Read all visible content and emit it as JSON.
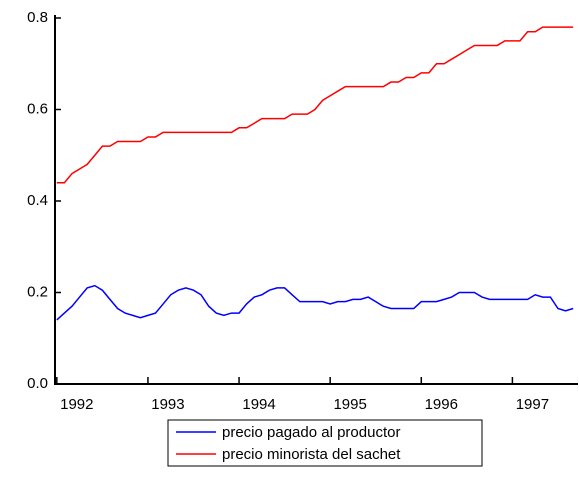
{
  "chart_data": {
    "type": "line",
    "x": [
      1992,
      1992.083,
      1992.167,
      1992.25,
      1992.333,
      1992.417,
      1992.5,
      1992.583,
      1992.667,
      1992.75,
      1992.833,
      1992.917,
      1993,
      1993.083,
      1993.167,
      1993.25,
      1993.333,
      1993.417,
      1993.5,
      1993.583,
      1993.667,
      1993.75,
      1993.833,
      1993.917,
      1994,
      1994.083,
      1994.167,
      1994.25,
      1994.333,
      1994.417,
      1994.5,
      1994.583,
      1994.667,
      1994.75,
      1994.833,
      1994.917,
      1995,
      1995.083,
      1995.167,
      1995.25,
      1995.333,
      1995.417,
      1995.5,
      1995.583,
      1995.667,
      1995.75,
      1995.833,
      1995.917,
      1996,
      1996.083,
      1996.167,
      1996.25,
      1996.333,
      1996.417,
      1996.5,
      1996.583,
      1996.667,
      1996.75,
      1996.833,
      1996.917,
      1997,
      1997.083,
      1997.167,
      1997.25,
      1997.333,
      1997.417,
      1997.5,
      1997.583,
      1997.667
    ],
    "series": [
      {
        "name": "precio pagado al productor",
        "color": "#0000ff",
        "values": [
          0.14,
          0.155,
          0.17,
          0.19,
          0.21,
          0.215,
          0.205,
          0.185,
          0.165,
          0.155,
          0.15,
          0.145,
          0.15,
          0.155,
          0.175,
          0.195,
          0.205,
          0.21,
          0.205,
          0.195,
          0.17,
          0.155,
          0.15,
          0.155,
          0.155,
          0.175,
          0.19,
          0.195,
          0.205,
          0.21,
          0.21,
          0.195,
          0.18,
          0.18,
          0.18,
          0.18,
          0.175,
          0.18,
          0.18,
          0.185,
          0.185,
          0.19,
          0.18,
          0.17,
          0.165,
          0.165,
          0.165,
          0.165,
          0.18,
          0.18,
          0.18,
          0.185,
          0.19,
          0.2,
          0.2,
          0.2,
          0.19,
          0.185,
          0.185,
          0.185,
          0.185,
          0.185,
          0.185,
          0.195,
          0.19,
          0.19,
          0.165,
          0.16,
          0.165
        ]
      },
      {
        "name": "precio minorista del sachet",
        "color": "#ff0000",
        "values": [
          0.44,
          0.44,
          0.46,
          0.47,
          0.48,
          0.5,
          0.52,
          0.52,
          0.53,
          0.53,
          0.53,
          0.53,
          0.54,
          0.54,
          0.55,
          0.55,
          0.55,
          0.55,
          0.55,
          0.55,
          0.55,
          0.55,
          0.55,
          0.55,
          0.56,
          0.56,
          0.57,
          0.58,
          0.58,
          0.58,
          0.58,
          0.59,
          0.59,
          0.59,
          0.6,
          0.62,
          0.63,
          0.64,
          0.65,
          0.65,
          0.65,
          0.65,
          0.65,
          0.65,
          0.66,
          0.66,
          0.67,
          0.67,
          0.68,
          0.68,
          0.7,
          0.7,
          0.71,
          0.72,
          0.73,
          0.74,
          0.74,
          0.74,
          0.74,
          0.75,
          0.75,
          0.75,
          0.77,
          0.77,
          0.78,
          0.78,
          0.78,
          0.78,
          0.78
        ]
      }
    ],
    "xlim": [
      1991.98,
      1997.72
    ],
    "xticks": [
      1992,
      1993,
      1994,
      1995,
      1996,
      1997
    ],
    "ylim": [
      0,
      0.8
    ],
    "yticks": [
      {
        "value": 0,
        "label": "0.0"
      },
      0.2,
      0.4,
      0.6,
      0.8
    ],
    "grid": false,
    "legend": "bottom"
  }
}
